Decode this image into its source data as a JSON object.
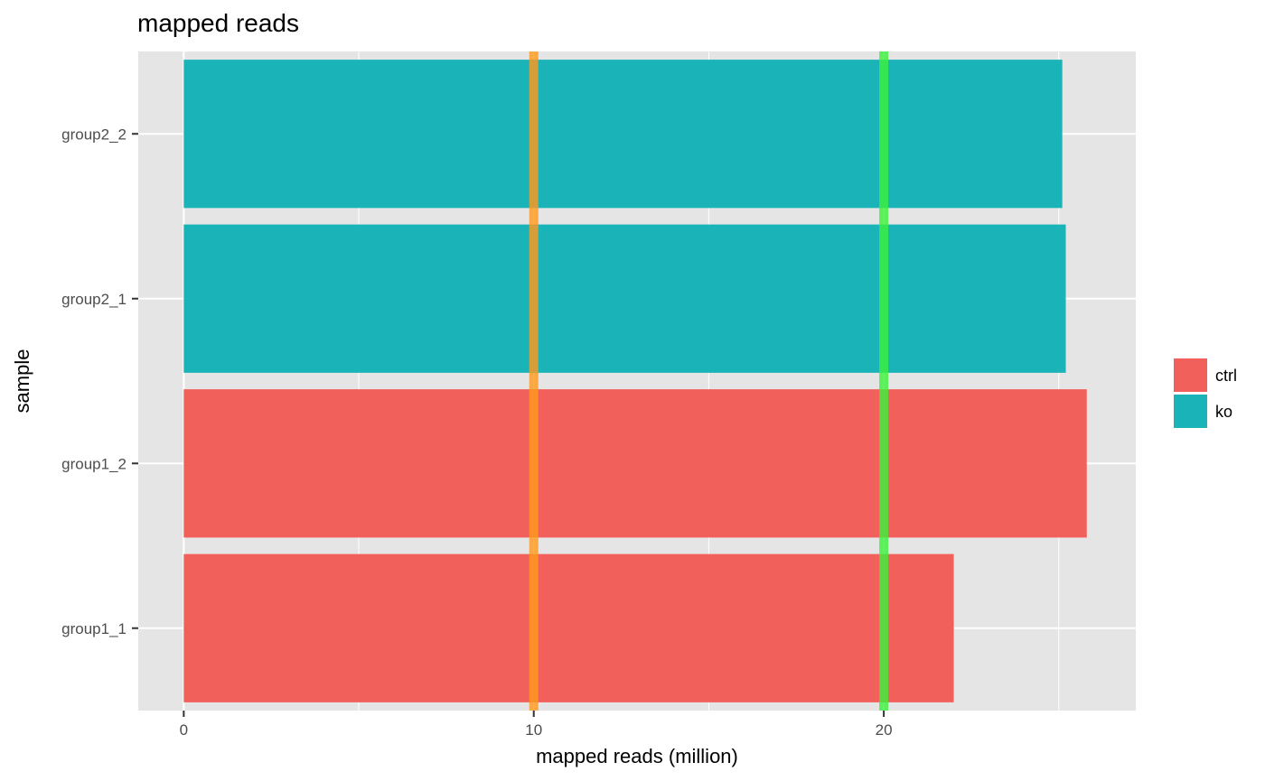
{
  "chart_data": {
    "type": "bar",
    "orientation": "horizontal",
    "title": "mapped reads",
    "xlabel": "mapped reads (million)",
    "ylabel": "sample",
    "categories": [
      "group1_1",
      "group1_2",
      "group2_1",
      "group2_2"
    ],
    "values": [
      22.0,
      25.8,
      25.2,
      25.1
    ],
    "groups": [
      "ctrl",
      "ctrl",
      "ko",
      "ko"
    ],
    "xlim": [
      -1.3,
      27.2
    ],
    "xticks": [
      0,
      10,
      20
    ],
    "grid": true,
    "legend": {
      "position": "right",
      "entries": [
        {
          "label": "ctrl",
          "color": "#F2605B"
        },
        {
          "label": "ko",
          "color": "#1AB3B7"
        }
      ]
    },
    "reference_lines": [
      {
        "x": 10,
        "color": "#FF9A1E"
      },
      {
        "x": 20,
        "color": "#3CF23C"
      }
    ],
    "colors": {
      "panel_background": "#E5E5E5",
      "grid": "#FFFFFF",
      "tick_text": "#4D4D4D"
    }
  }
}
